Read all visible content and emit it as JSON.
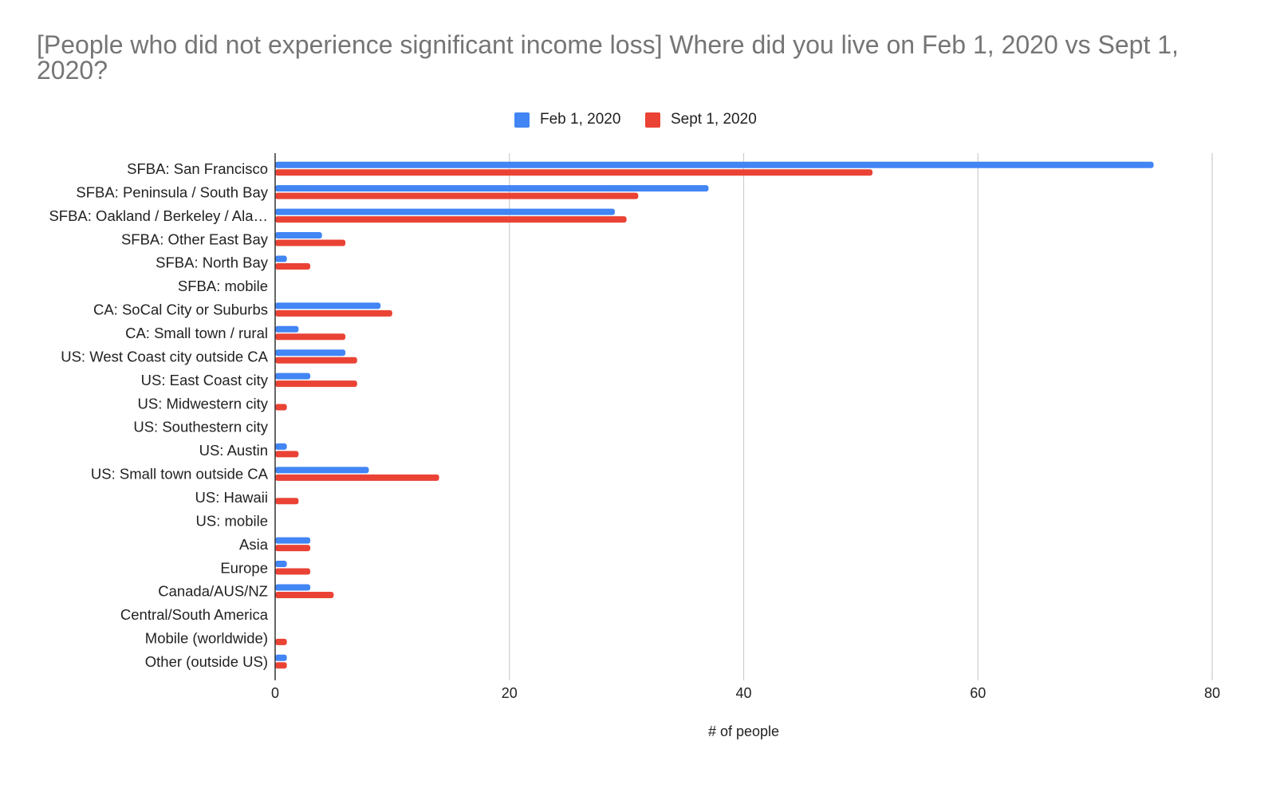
{
  "chart_data": {
    "type": "bar",
    "orientation": "horizontal",
    "title": "[People who did not experience significant income loss] Where did you live on Feb 1, 2020 vs Sept 1, 2020?",
    "xlabel": "# of people",
    "ylabel": "",
    "xlim": [
      0,
      80
    ],
    "xticks": [
      "0",
      "20",
      "40",
      "60",
      "80"
    ],
    "grid": true,
    "legend_position": "top",
    "categories": [
      "SFBA: San Francisco",
      "SFBA: Peninsula / South Bay",
      "SFBA: Oakland / Berkeley / Ala…",
      "SFBA: Other East Bay",
      "SFBA: North Bay",
      "SFBA: mobile",
      "CA: SoCal City or Suburbs",
      "CA: Small town / rural",
      "US: West Coast city outside CA",
      "US: East Coast city",
      "US: Midwestern city",
      "US: Southestern city",
      "US: Austin",
      "US: Small town outside CA",
      "US: Hawaii",
      "US: mobile",
      "Asia",
      "Europe",
      "Canada/AUS/NZ",
      "Central/South America",
      "Mobile (worldwide)",
      "Other (outside US)"
    ],
    "series": [
      {
        "name": "Feb 1, 2020",
        "color": "#4285F4",
        "values": [
          75,
          37,
          29,
          4,
          1,
          0,
          9,
          2,
          6,
          3,
          0,
          0,
          1,
          8,
          0,
          0,
          3,
          1,
          3,
          0,
          0,
          1
        ]
      },
      {
        "name": "Sept 1, 2020",
        "color": "#EA4335",
        "values": [
          51,
          31,
          30,
          6,
          3,
          0,
          10,
          6,
          7,
          7,
          1,
          0,
          2,
          14,
          2,
          0,
          3,
          3,
          5,
          0,
          1,
          1
        ]
      }
    ]
  }
}
